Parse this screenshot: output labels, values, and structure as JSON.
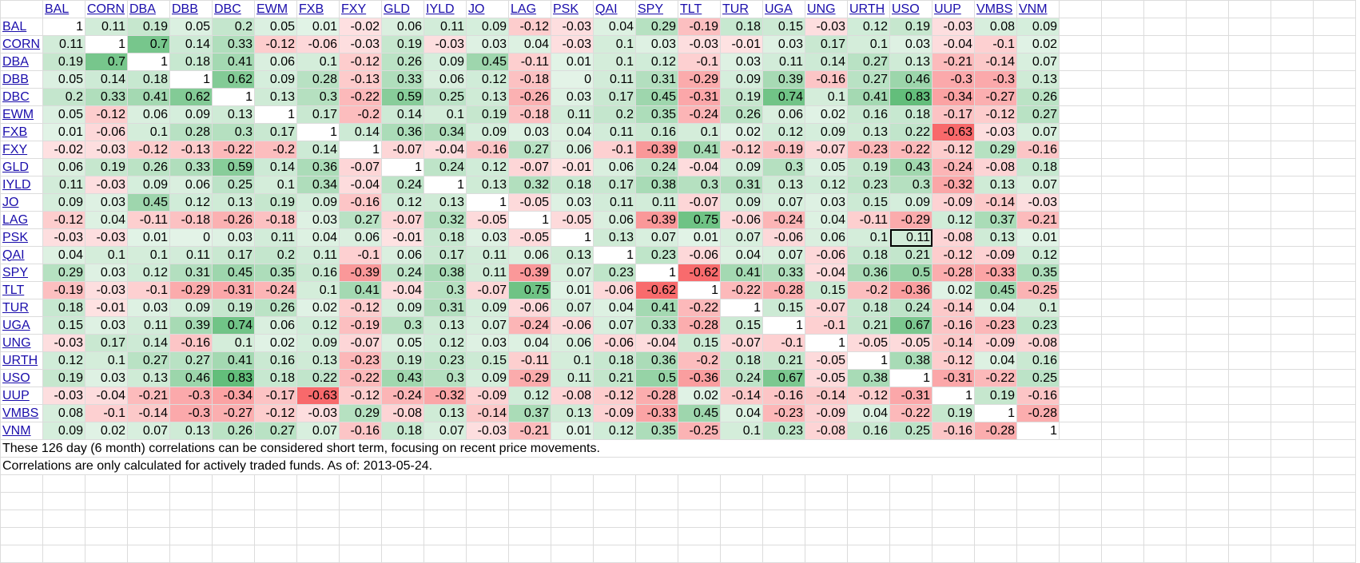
{
  "tickers": [
    "BAL",
    "CORN",
    "DBA",
    "DBB",
    "DBC",
    "EWM",
    "FXB",
    "FXY",
    "GLD",
    "IYLD",
    "JO",
    "LAG",
    "PSK",
    "QAI",
    "SPY",
    "TLT",
    "TUR",
    "UGA",
    "UNG",
    "URTH",
    "USO",
    "UUP",
    "VMBS",
    "VNM"
  ],
  "matrix": [
    [
      1,
      0.11,
      0.19,
      0.05,
      0.2,
      0.05,
      0.01,
      -0.02,
      0.06,
      0.11,
      0.09,
      -0.12,
      -0.03,
      0.04,
      0.29,
      -0.19,
      0.18,
      0.15,
      -0.03,
      0.12,
      0.19,
      -0.03,
      0.08,
      0.09
    ],
    [
      0.11,
      1,
      0.7,
      0.14,
      0.33,
      -0.12,
      -0.06,
      -0.03,
      0.19,
      -0.03,
      0.03,
      0.04,
      -0.03,
      0.1,
      0.03,
      -0.03,
      -0.01,
      0.03,
      0.17,
      0.1,
      0.03,
      -0.04,
      -0.1,
      0.02
    ],
    [
      0.19,
      0.7,
      1,
      0.18,
      0.41,
      0.06,
      0.1,
      -0.12,
      0.26,
      0.09,
      0.45,
      -0.11,
      0.01,
      0.1,
      0.12,
      -0.1,
      0.03,
      0.11,
      0.14,
      0.27,
      0.13,
      -0.21,
      -0.14,
      0.07
    ],
    [
      0.05,
      0.14,
      0.18,
      1,
      0.62,
      0.09,
      0.28,
      -0.13,
      0.33,
      0.06,
      0.12,
      -0.18,
      0,
      0.11,
      0.31,
      -0.29,
      0.09,
      0.39,
      -0.16,
      0.27,
      0.46,
      -0.3,
      -0.3,
      0.13
    ],
    [
      0.2,
      0.33,
      0.41,
      0.62,
      1,
      0.13,
      0.3,
      -0.22,
      0.59,
      0.25,
      0.13,
      -0.26,
      0.03,
      0.17,
      0.45,
      -0.31,
      0.19,
      0.74,
      0.1,
      0.41,
      0.83,
      -0.34,
      -0.27,
      0.26
    ],
    [
      0.05,
      -0.12,
      0.06,
      0.09,
      0.13,
      1,
      0.17,
      -0.2,
      0.14,
      0.1,
      0.19,
      -0.18,
      0.11,
      0.2,
      0.35,
      -0.24,
      0.26,
      0.06,
      0.02,
      0.16,
      0.18,
      -0.17,
      -0.12,
      0.27
    ],
    [
      0.01,
      -0.06,
      0.1,
      0.28,
      0.3,
      0.17,
      1,
      0.14,
      0.36,
      0.34,
      0.09,
      0.03,
      0.04,
      0.11,
      0.16,
      0.1,
      0.02,
      0.12,
      0.09,
      0.13,
      0.22,
      -0.63,
      -0.03,
      0.07
    ],
    [
      -0.02,
      -0.03,
      -0.12,
      -0.13,
      -0.22,
      -0.2,
      0.14,
      1,
      -0.07,
      -0.04,
      -0.16,
      0.27,
      0.06,
      -0.1,
      -0.39,
      0.41,
      -0.12,
      -0.19,
      -0.07,
      -0.23,
      -0.22,
      -0.12,
      0.29,
      -0.16
    ],
    [
      0.06,
      0.19,
      0.26,
      0.33,
      0.59,
      0.14,
      0.36,
      -0.07,
      1,
      0.24,
      0.12,
      -0.07,
      -0.01,
      0.06,
      0.24,
      -0.04,
      0.09,
      0.3,
      0.05,
      0.19,
      0.43,
      -0.24,
      -0.08,
      0.18
    ],
    [
      0.11,
      -0.03,
      0.09,
      0.06,
      0.25,
      0.1,
      0.34,
      -0.04,
      0.24,
      1,
      0.13,
      0.32,
      0.18,
      0.17,
      0.38,
      0.3,
      0.31,
      0.13,
      0.12,
      0.23,
      0.3,
      -0.32,
      0.13,
      0.07
    ],
    [
      0.09,
      0.03,
      0.45,
      0.12,
      0.13,
      0.19,
      0.09,
      -0.16,
      0.12,
      0.13,
      1,
      -0.05,
      0.03,
      0.11,
      0.11,
      -0.07,
      0.09,
      0.07,
      0.03,
      0.15,
      0.09,
      -0.09,
      -0.14,
      -0.03
    ],
    [
      -0.12,
      0.04,
      -0.11,
      -0.18,
      -0.26,
      -0.18,
      0.03,
      0.27,
      -0.07,
      0.32,
      -0.05,
      1,
      -0.05,
      0.06,
      -0.39,
      0.75,
      -0.06,
      -0.24,
      0.04,
      -0.11,
      -0.29,
      0.12,
      0.37,
      -0.21
    ],
    [
      -0.03,
      -0.03,
      0.01,
      0,
      0.03,
      0.11,
      0.04,
      0.06,
      -0.01,
      0.18,
      0.03,
      -0.05,
      1,
      0.13,
      0.07,
      0.01,
      0.07,
      -0.06,
      0.06,
      0.1,
      0.11,
      -0.08,
      0.13,
      0.01
    ],
    [
      0.04,
      0.1,
      0.1,
      0.11,
      0.17,
      0.2,
      0.11,
      -0.1,
      0.06,
      0.17,
      0.11,
      0.06,
      0.13,
      1,
      0.23,
      -0.06,
      0.04,
      0.07,
      -0.06,
      0.18,
      0.21,
      -0.12,
      -0.09,
      0.12
    ],
    [
      0.29,
      0.03,
      0.12,
      0.31,
      0.45,
      0.35,
      0.16,
      -0.39,
      0.24,
      0.38,
      0.11,
      -0.39,
      0.07,
      0.23,
      1,
      -0.62,
      0.41,
      0.33,
      -0.04,
      0.36,
      0.5,
      -0.28,
      -0.33,
      0.35
    ],
    [
      -0.19,
      -0.03,
      -0.1,
      -0.29,
      -0.31,
      -0.24,
      0.1,
      0.41,
      -0.04,
      0.3,
      -0.07,
      0.75,
      0.01,
      -0.06,
      -0.62,
      1,
      -0.22,
      -0.28,
      0.15,
      -0.2,
      -0.36,
      0.02,
      0.45,
      -0.25
    ],
    [
      0.18,
      -0.01,
      0.03,
      0.09,
      0.19,
      0.26,
      0.02,
      -0.12,
      0.09,
      0.31,
      0.09,
      -0.06,
      0.07,
      0.04,
      0.41,
      -0.22,
      1,
      0.15,
      -0.07,
      0.18,
      0.24,
      -0.14,
      0.04,
      0.1
    ],
    [
      0.15,
      0.03,
      0.11,
      0.39,
      0.74,
      0.06,
      0.12,
      -0.19,
      0.3,
      0.13,
      0.07,
      -0.24,
      -0.06,
      0.07,
      0.33,
      -0.28,
      0.15,
      1,
      -0.1,
      0.21,
      0.67,
      -0.16,
      -0.23,
      0.23
    ],
    [
      -0.03,
      0.17,
      0.14,
      -0.16,
      0.1,
      0.02,
      0.09,
      -0.07,
      0.05,
      0.12,
      0.03,
      0.04,
      0.06,
      -0.06,
      -0.04,
      0.15,
      -0.07,
      -0.1,
      1,
      -0.05,
      -0.05,
      -0.14,
      -0.09,
      -0.08
    ],
    [
      0.12,
      0.1,
      0.27,
      0.27,
      0.41,
      0.16,
      0.13,
      -0.23,
      0.19,
      0.23,
      0.15,
      -0.11,
      0.1,
      0.18,
      0.36,
      -0.2,
      0.18,
      0.21,
      -0.05,
      1,
      0.38,
      -0.12,
      0.04,
      0.16
    ],
    [
      0.19,
      0.03,
      0.13,
      0.46,
      0.83,
      0.18,
      0.22,
      -0.22,
      0.43,
      0.3,
      0.09,
      -0.29,
      0.11,
      0.21,
      0.5,
      -0.36,
      0.24,
      0.67,
      -0.05,
      0.38,
      1,
      -0.31,
      -0.22,
      0.25
    ],
    [
      -0.03,
      -0.04,
      -0.21,
      -0.3,
      -0.34,
      -0.17,
      -0.63,
      -0.12,
      -0.24,
      -0.32,
      -0.09,
      0.12,
      -0.08,
      -0.12,
      -0.28,
      0.02,
      -0.14,
      -0.16,
      -0.14,
      -0.12,
      -0.31,
      1,
      0.19,
      -0.16
    ],
    [
      0.08,
      -0.1,
      -0.14,
      -0.3,
      -0.27,
      -0.12,
      -0.03,
      0.29,
      -0.08,
      0.13,
      -0.14,
      0.37,
      0.13,
      -0.09,
      -0.33,
      0.45,
      0.04,
      -0.23,
      -0.09,
      0.04,
      -0.22,
      0.19,
      1,
      -0.28
    ],
    [
      0.09,
      0.02,
      0.07,
      0.13,
      0.26,
      0.27,
      0.07,
      -0.16,
      0.18,
      0.07,
      -0.03,
      -0.21,
      0.01,
      0.12,
      0.35,
      -0.25,
      0.1,
      0.23,
      -0.08,
      0.16,
      0.25,
      -0.16,
      -0.28,
      1
    ]
  ],
  "notes": [
    "These 126 day (6 month) correlations can be considered short term, focusing on recent price movements.",
    "Correlations are only calculated for actively traded funds. As of: 2013-05-24."
  ],
  "selected_cell": {
    "row": "PSK",
    "col": "USO"
  },
  "colors": {
    "positive_max": "#63be7b",
    "negative_max": "#f8696b",
    "neutral": "#ffffff",
    "link": "#1a0dab",
    "gridline": "#dcdcdc"
  }
}
